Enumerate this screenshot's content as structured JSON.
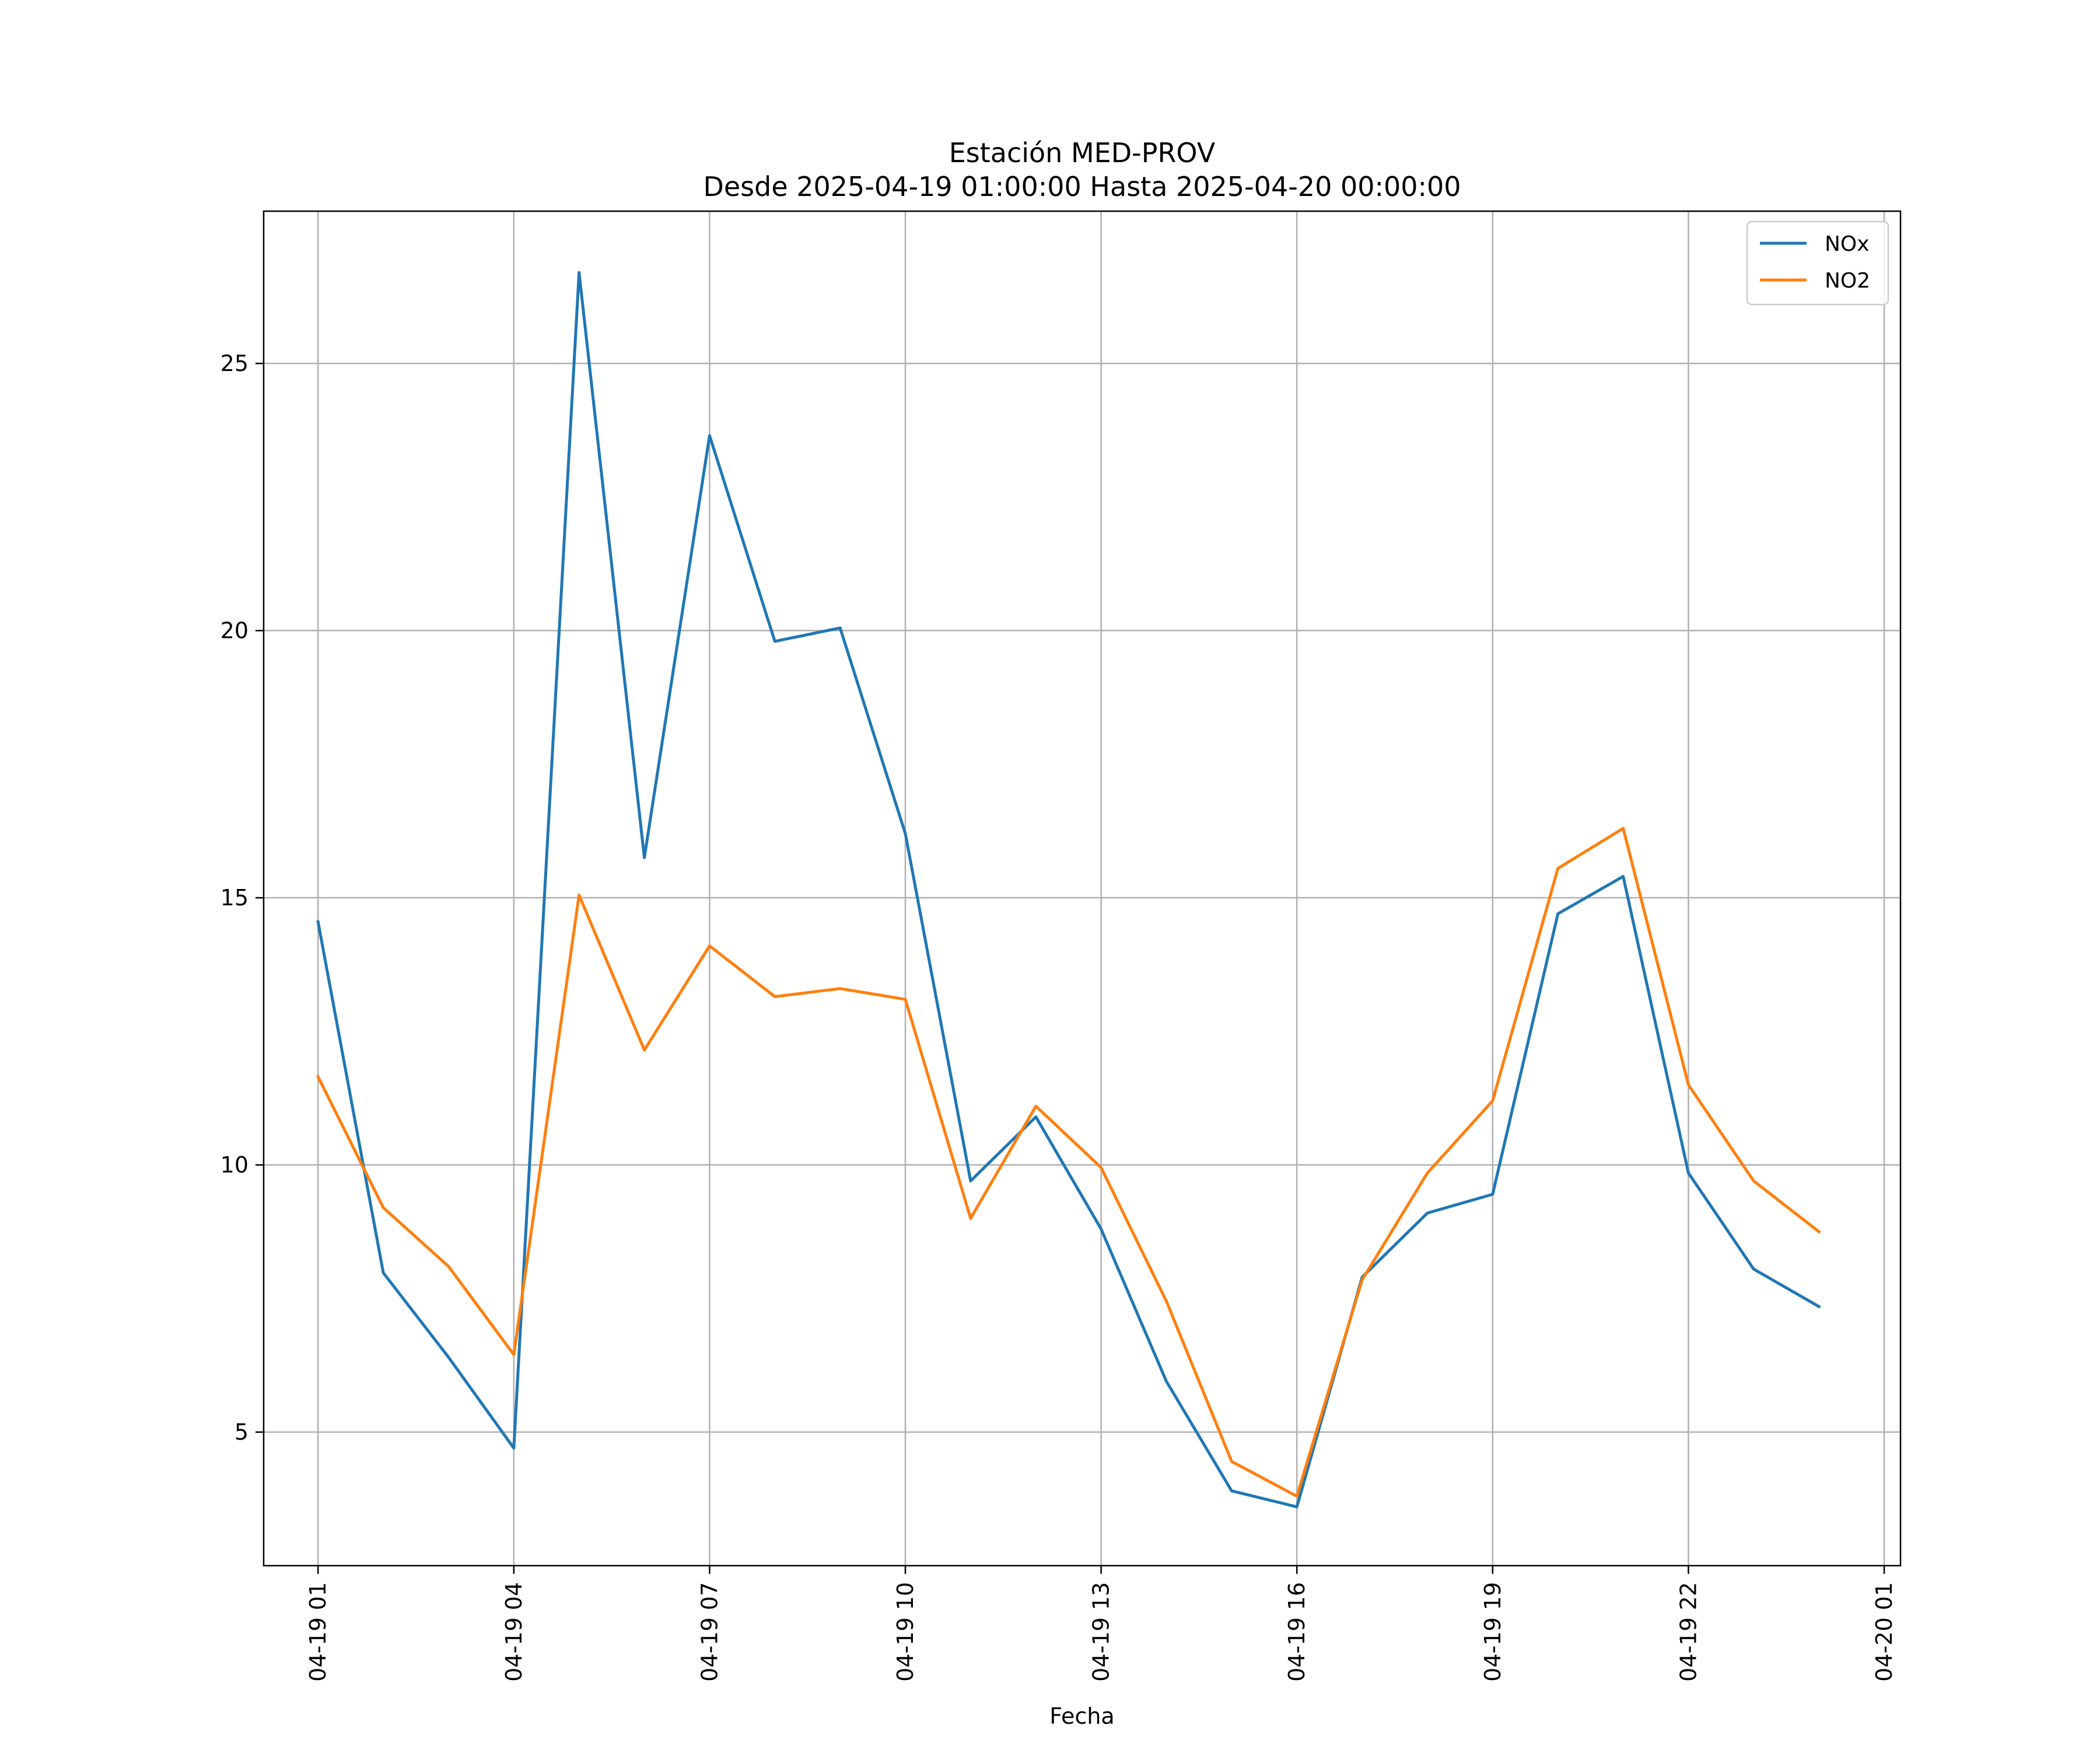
{
  "chart_data": {
    "type": "line",
    "title": "Estación MED-PROV",
    "subtitle": "Desde 2025-04-19 01:00:00 Hasta 2025-04-20 00:00:00",
    "xlabel": "Fecha",
    "ylabel": "",
    "x": [
      "2025-04-19 01:00",
      "2025-04-19 02:00",
      "2025-04-19 03:00",
      "2025-04-19 04:00",
      "2025-04-19 05:00",
      "2025-04-19 06:00",
      "2025-04-19 07:00",
      "2025-04-19 08:00",
      "2025-04-19 09:00",
      "2025-04-19 10:00",
      "2025-04-19 11:00",
      "2025-04-19 12:00",
      "2025-04-19 13:00",
      "2025-04-19 14:00",
      "2025-04-19 15:00",
      "2025-04-19 16:00",
      "2025-04-19 17:00",
      "2025-04-19 18:00",
      "2025-04-19 19:00",
      "2025-04-19 20:00",
      "2025-04-19 21:00",
      "2025-04-19 22:00",
      "2025-04-19 23:00",
      "2025-04-20 00:00"
    ],
    "series": [
      {
        "name": "NOx",
        "color": "#1f77b4",
        "values": [
          14.55,
          7.98,
          6.4,
          4.7,
          26.7,
          15.75,
          23.65,
          19.8,
          20.05,
          16.2,
          9.7,
          10.9,
          8.8,
          5.95,
          3.9,
          3.6,
          7.9,
          9.1,
          9.45,
          14.7,
          15.4,
          9.85,
          8.05,
          7.35
        ]
      },
      {
        "name": "NO2",
        "color": "#ff7f0e",
        "values": [
          11.65,
          9.2,
          8.1,
          6.45,
          15.05,
          12.15,
          14.1,
          13.15,
          13.3,
          13.1,
          9.0,
          11.1,
          9.95,
          7.45,
          4.45,
          3.8,
          7.85,
          9.85,
          11.2,
          15.55,
          16.3,
          11.5,
          9.7,
          8.75
        ]
      }
    ],
    "xticks": [
      "04-19 01",
      "04-19 04",
      "04-19 07",
      "04-19 10",
      "04-19 13",
      "04-19 16",
      "04-19 19",
      "04-19 22",
      "04-20 01"
    ],
    "xticks_x": [
      "2025-04-19 01:00",
      "2025-04-19 04:00",
      "2025-04-19 07:00",
      "2025-04-19 10:00",
      "2025-04-19 13:00",
      "2025-04-19 16:00",
      "2025-04-19 19:00",
      "2025-04-19 22:00",
      "2025-04-20 01:00"
    ],
    "yticks": [
      5,
      10,
      15,
      20,
      25
    ],
    "xlim": [
      "2025-04-19 00:10",
      "2025-04-20 01:15"
    ],
    "ylim": [
      2.5,
      27.85
    ],
    "grid": true,
    "legend_position": "top-right"
  }
}
